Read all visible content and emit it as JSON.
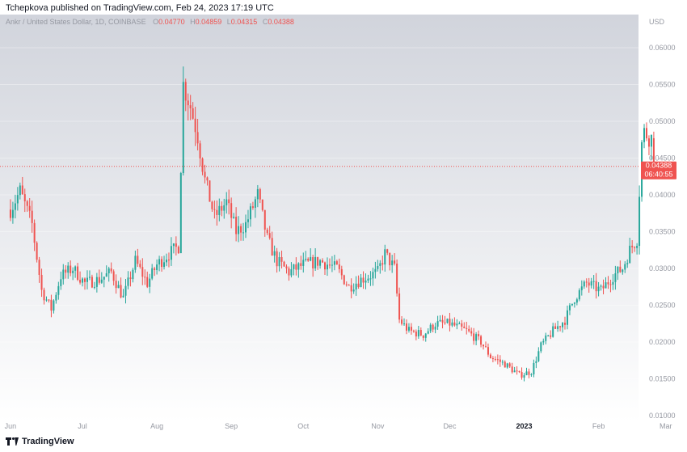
{
  "header": {
    "published": "Tchepkova published on TradingView.com, Feb 24, 2023 17:19 UTC"
  },
  "legend": {
    "symbol": "Ankr / United States Dollar, 1D, COINBASE",
    "o_label": "O",
    "o_value": "0.04770",
    "h_label": "H",
    "h_value": "0.04859",
    "l_label": "L",
    "l_value": "0.04315",
    "c_label": "C",
    "c_value": "0.04388"
  },
  "price_badge": {
    "price": "0.04388",
    "countdown": "06:40:55"
  },
  "footer": {
    "brand": "TradingView"
  },
  "colors": {
    "up": "#26a69a",
    "down": "#ef5350",
    "axis_text": "#9598a1"
  },
  "chart_data": {
    "type": "candlestick",
    "currency_label": "USD",
    "y_ticks": [
      {
        "value": 0.01,
        "label": "0.01000"
      },
      {
        "value": 0.015,
        "label": "0.01500"
      },
      {
        "value": 0.02,
        "label": "0.02000"
      },
      {
        "value": 0.025,
        "label": "0.02500"
      },
      {
        "value": 0.03,
        "label": "0.03000"
      },
      {
        "value": 0.035,
        "label": "0.03500"
      },
      {
        "value": 0.04,
        "label": "0.04000"
      },
      {
        "value": 0.045,
        "label": "0.04500"
      },
      {
        "value": 0.05,
        "label": "0.05000"
      },
      {
        "value": 0.055,
        "label": "0.05500"
      },
      {
        "value": 0.06,
        "label": "0.06000"
      }
    ],
    "x_ticks": [
      {
        "label": "Jun",
        "date": "2022-06-01"
      },
      {
        "label": "Jul",
        "date": "2022-07-01"
      },
      {
        "label": "Aug",
        "date": "2022-08-01"
      },
      {
        "label": "Sep",
        "date": "2022-09-01"
      },
      {
        "label": "Oct",
        "date": "2022-10-01"
      },
      {
        "label": "Nov",
        "date": "2022-11-01"
      },
      {
        "label": "Dec",
        "date": "2022-12-01"
      },
      {
        "label": "2023",
        "date": "2023-01-01"
      },
      {
        "label": "Feb",
        "date": "2023-02-01"
      },
      {
        "label": "Mar",
        "date": "2023-03-01"
      }
    ],
    "start_date": "2022-06-01",
    "end_date": "2023-02-24",
    "price_path": [
      [
        "2022-06-01",
        0.038
      ],
      [
        "2022-06-05",
        0.0405
      ],
      [
        "2022-06-10",
        0.036
      ],
      [
        "2022-06-14",
        0.027
      ],
      [
        "2022-06-18",
        0.0245
      ],
      [
        "2022-06-22",
        0.029
      ],
      [
        "2022-06-27",
        0.03
      ],
      [
        "2022-07-02",
        0.028
      ],
      [
        "2022-07-08",
        0.0285
      ],
      [
        "2022-07-13",
        0.0295
      ],
      [
        "2022-07-18",
        0.026
      ],
      [
        "2022-07-23",
        0.031
      ],
      [
        "2022-07-28",
        0.028
      ],
      [
        "2022-08-01",
        0.0305
      ],
      [
        "2022-08-06",
        0.032
      ],
      [
        "2022-08-10",
        0.033
      ],
      [
        "2022-08-12",
        0.055
      ],
      [
        "2022-08-15",
        0.052
      ],
      [
        "2022-08-18",
        0.048
      ],
      [
        "2022-08-21",
        0.042
      ],
      [
        "2022-08-25",
        0.037
      ],
      [
        "2022-08-30",
        0.039
      ],
      [
        "2022-09-03",
        0.035
      ],
      [
        "2022-09-07",
        0.036
      ],
      [
        "2022-09-12",
        0.04
      ],
      [
        "2022-09-16",
        0.034
      ],
      [
        "2022-09-20",
        0.031
      ],
      [
        "2022-09-25",
        0.0295
      ],
      [
        "2022-10-01",
        0.0305
      ],
      [
        "2022-10-08",
        0.031
      ],
      [
        "2022-10-15",
        0.03
      ],
      [
        "2022-10-20",
        0.0275
      ],
      [
        "2022-10-25",
        0.0285
      ],
      [
        "2022-11-01",
        0.0295
      ],
      [
        "2022-11-04",
        0.032
      ],
      [
        "2022-11-08",
        0.03
      ],
      [
        "2022-11-10",
        0.023
      ],
      [
        "2022-11-14",
        0.0215
      ],
      [
        "2022-11-20",
        0.021
      ],
      [
        "2022-11-25",
        0.0225
      ],
      [
        "2022-12-01",
        0.0225
      ],
      [
        "2022-12-08",
        0.0215
      ],
      [
        "2022-12-14",
        0.02
      ],
      [
        "2022-12-18",
        0.018
      ],
      [
        "2022-12-24",
        0.017
      ],
      [
        "2022-12-30",
        0.0155
      ],
      [
        "2023-01-04",
        0.016
      ],
      [
        "2023-01-08",
        0.0195
      ],
      [
        "2023-01-13",
        0.0215
      ],
      [
        "2023-01-18",
        0.023
      ],
      [
        "2023-01-22",
        0.026
      ],
      [
        "2023-01-27",
        0.028
      ],
      [
        "2023-02-02",
        0.027
      ],
      [
        "2023-02-07",
        0.029
      ],
      [
        "2023-02-11",
        0.03
      ],
      [
        "2023-02-14",
        0.0325
      ],
      [
        "2023-02-17",
        0.034
      ],
      [
        "2023-02-19",
        0.047
      ],
      [
        "2023-02-20",
        0.0485
      ],
      [
        "2023-02-23",
        0.0477
      ],
      [
        "2023-02-24",
        0.04388
      ]
    ]
  }
}
